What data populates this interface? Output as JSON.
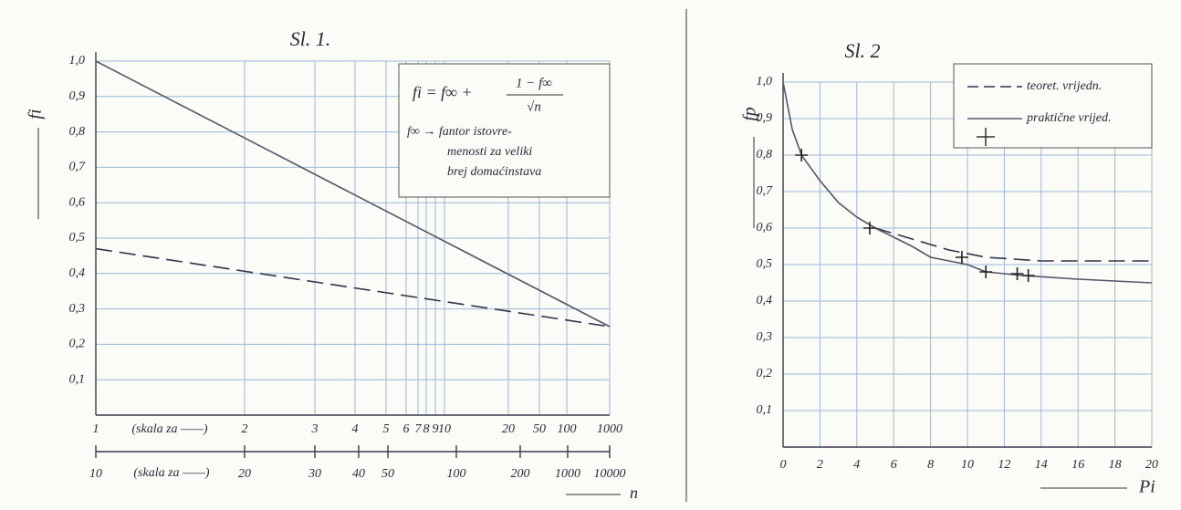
{
  "chart_data": [
    {
      "type": "line",
      "title": "Sl. 1.",
      "y_label": "fi",
      "x_label": "n",
      "formula_left": "fi = f∞ +",
      "formula_numerator": "1 − f∞",
      "formula_denominator": "√n",
      "note": [
        "f∞ → fantor istovre-",
        "menosti za veliki",
        "brej domaćinstava"
      ],
      "scale_notes": [
        "(skala za ——)",
        "(skala za ——)"
      ],
      "x": [
        1,
        1000
      ],
      "series": [
        {
          "color": "#55556a",
          "dashed": false,
          "values": [
            1.0,
            0.25
          ]
        },
        {
          "color": "#33334a",
          "dashed": true,
          "values": [
            0.47,
            0.25
          ]
        }
      ],
      "xticks": [
        1,
        2,
        3,
        4,
        5,
        6,
        7,
        8,
        9,
        10,
        20,
        50,
        100,
        1000
      ],
      "x2ticks": [
        10,
        20,
        30,
        40,
        50,
        100,
        200,
        1000,
        10000
      ],
      "ylim": [
        0,
        1.0
      ],
      "yticks": [
        {
          "value": 0.1,
          "label": "0,1"
        },
        {
          "value": 0.2,
          "label": "0,2"
        },
        {
          "value": 0.3,
          "label": "0,3"
        },
        {
          "value": 0.4,
          "label": "0,4"
        },
        {
          "value": 0.5,
          "label": "0,5"
        },
        {
          "value": 0.6,
          "label": "0,6"
        },
        {
          "value": 0.7,
          "label": "0,7"
        },
        {
          "value": 0.8,
          "label": "0,8"
        },
        {
          "value": 0.9,
          "label": "0,9"
        },
        {
          "value": 1.0,
          "label": "1,0"
        }
      ],
      "grid": true
    },
    {
      "type": "line",
      "title": "Sl. 2",
      "y_label": "fp",
      "x_label": "Pi",
      "xlim": [
        0,
        20
      ],
      "xticks": [
        0,
        2,
        4,
        6,
        8,
        10,
        12,
        14,
        16,
        18,
        20
      ],
      "ylim": [
        0,
        1.0
      ],
      "yticks": [
        {
          "value": 0.1,
          "label": "0,1"
        },
        {
          "value": 0.2,
          "label": "0,2"
        },
        {
          "value": 0.3,
          "label": "0,3"
        },
        {
          "value": 0.4,
          "label": "0,4"
        },
        {
          "value": 0.5,
          "label": "0,5"
        },
        {
          "value": 0.6,
          "label": "0,6"
        },
        {
          "value": 0.7,
          "label": "0,7"
        },
        {
          "value": 0.8,
          "label": "0,8"
        },
        {
          "value": 0.9,
          "label": "0,9"
        },
        {
          "value": 1.0,
          "label": "1,0"
        }
      ],
      "series": [
        {
          "name": "teoret. vrijedn.",
          "color": "#33334a",
          "dashed": true,
          "x": [
            5,
            7,
            9,
            11,
            14,
            20
          ],
          "values": [
            0.6,
            0.57,
            0.54,
            0.52,
            0.51,
            0.51
          ]
        },
        {
          "name": "praktične vrijed.",
          "color": "#55556a",
          "dashed": false,
          "x": [
            0,
            0.5,
            1,
            2,
            3,
            4,
            5,
            7,
            8,
            9,
            10,
            11,
            13,
            16,
            20
          ],
          "values": [
            1.0,
            0.87,
            0.8,
            0.73,
            0.67,
            0.63,
            0.6,
            0.55,
            0.52,
            0.51,
            0.5,
            0.48,
            0.47,
            0.46,
            0.45
          ]
        }
      ],
      "markers": {
        "x": [
          1,
          4.7,
          9.7,
          11,
          12.7,
          13.3
        ],
        "values": [
          0.8,
          0.6,
          0.52,
          0.48,
          0.475,
          0.47
        ]
      },
      "grid": true,
      "legend": "top-right"
    }
  ]
}
